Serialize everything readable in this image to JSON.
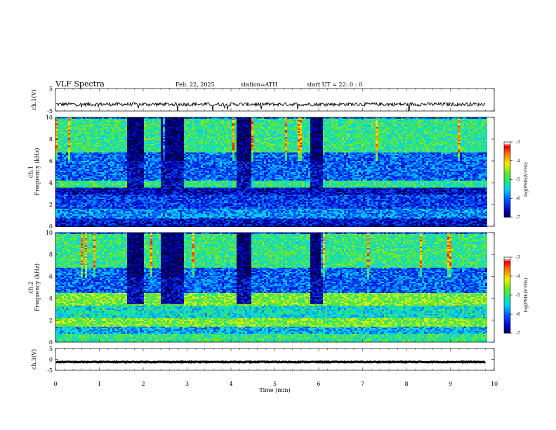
{
  "header": {
    "title": "VLF  Spectra",
    "date": "Feb. 22, 2025",
    "station": "station=ATH",
    "start": "start  UT  =    22: 0   : 0"
  },
  "chart_data": [
    {
      "type": "line",
      "panel": "ch1-voltage",
      "ylabel": "ch.1(V)",
      "ylim": [
        -5,
        5
      ],
      "y_ticks": [
        "5",
        "-5"
      ],
      "x_range_min": [
        0,
        9.8
      ],
      "baseline": -2,
      "color": "#000000"
    },
    {
      "type": "heatmap",
      "panel": "ch1-spectrogram",
      "ylabel": "ch.1\nFrequency  (kHz)",
      "ylim": [
        0,
        10
      ],
      "y_ticks": [
        "0",
        "2",
        "4",
        "6",
        "8",
        "10"
      ],
      "x_range_min": [
        0,
        9.8
      ],
      "colorbar": {
        "label": "log(PSD)(V²/Hz)",
        "range": [
          -7,
          -3
        ],
        "ticks": [
          "-3",
          "-4",
          "-5",
          "-6",
          "-7"
        ]
      },
      "gaps_min": [
        [
          1.6,
          2.0
        ],
        [
          2.4,
          2.9
        ],
        [
          4.1,
          4.45
        ],
        [
          5.8,
          6.05
        ]
      ],
      "bands_khz": [
        {
          "from": 0.0,
          "to": 0.8,
          "level": -6.5
        },
        {
          "from": 0.8,
          "to": 1.7,
          "level": -5.8
        },
        {
          "from": 1.7,
          "to": 3.0,
          "level": -6.2
        },
        {
          "from": 3.0,
          "to": 3.6,
          "level": -6.6
        },
        {
          "from": 3.6,
          "to": 4.3,
          "level": -5.0
        },
        {
          "from": 4.3,
          "to": 6.8,
          "level": -6.0
        },
        {
          "from": 6.8,
          "to": 10.0,
          "level": -5.0
        }
      ]
    },
    {
      "type": "heatmap",
      "panel": "ch2-spectrogram",
      "ylabel": "ch.2\nFrequency  (kHz)",
      "ylim": [
        0,
        10
      ],
      "y_ticks": [
        "0",
        "2",
        "4",
        "6",
        "8",
        "10"
      ],
      "x_range_min": [
        0,
        9.8
      ],
      "colorbar": {
        "label": "log(PSD)(V²/Hz)",
        "range": [
          -7,
          -3
        ],
        "ticks": [
          "-3",
          "-4",
          "-5",
          "-6",
          "-7"
        ]
      },
      "gaps_min": [
        [
          1.6,
          2.0
        ],
        [
          2.4,
          2.9
        ],
        [
          4.1,
          4.45
        ],
        [
          5.8,
          6.05
        ]
      ],
      "bands_khz": [
        {
          "from": 0.0,
          "to": 0.8,
          "level": -5.0
        },
        {
          "from": 0.8,
          "to": 1.5,
          "level": -5.6
        },
        {
          "from": 1.5,
          "to": 2.3,
          "level": -4.6
        },
        {
          "from": 2.3,
          "to": 3.4,
          "level": -5.3
        },
        {
          "from": 3.4,
          "to": 4.6,
          "level": -4.6
        },
        {
          "from": 4.6,
          "to": 6.8,
          "level": -6.0
        },
        {
          "from": 6.8,
          "to": 10.0,
          "level": -5.0
        }
      ]
    },
    {
      "type": "line",
      "panel": "ch3-voltage",
      "ylabel": "ch.3(V)",
      "ylim": [
        -5,
        5
      ],
      "y_ticks": [
        "5",
        "0",
        "-5"
      ],
      "x_range_min": [
        0,
        9.8
      ],
      "baseline": -1.2,
      "color": "#000000"
    }
  ],
  "x_axis": {
    "label": "Time  (min)",
    "range": [
      0,
      10
    ],
    "ticks": [
      "0",
      "1",
      "2",
      "3",
      "4",
      "5",
      "6",
      "7",
      "8",
      "9",
      "10"
    ]
  }
}
